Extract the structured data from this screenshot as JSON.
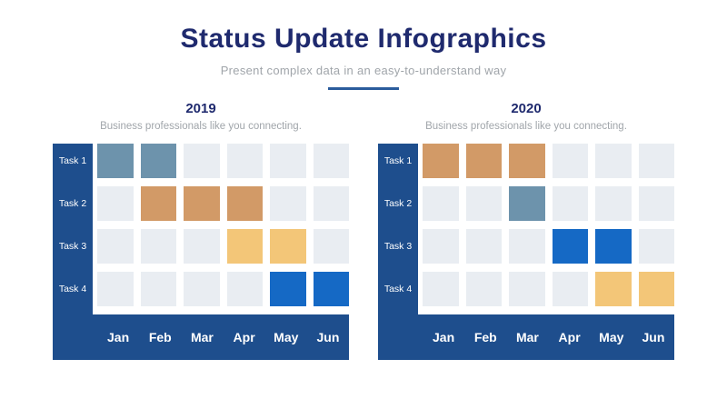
{
  "header": {
    "title": "Status Update Infographics",
    "subtitle": "Present complex data in an easy-to-understand way"
  },
  "colors": {
    "navy": "#1e4e8d",
    "title_navy": "#1f2a6e",
    "muted_text": "#a0a5aa",
    "divider_blue": "#2b5c9c",
    "cell_empty": "#e9edf2",
    "steel_blue": "#6d93ac",
    "tan": "#d29a67",
    "light_orange": "#f3c678",
    "bright_blue": "#1569c5",
    "label_white": "#ffffff"
  },
  "chart_data": [
    {
      "type": "bar",
      "subtype": "gantt-grid",
      "title": "2019",
      "caption": "Business professionals like you connecting.",
      "x": [
        "Jan",
        "Feb",
        "Mar",
        "Apr",
        "May",
        "Jun"
      ],
      "categories": [
        "Task 1",
        "Task 2",
        "Task 3",
        "Task 4"
      ],
      "series": [
        {
          "name": "Task 1",
          "months": [
            "Jan",
            "Feb"
          ],
          "color_key": "steel_blue"
        },
        {
          "name": "Task 2",
          "months": [
            "Feb",
            "Mar",
            "Apr"
          ],
          "color_key": "tan"
        },
        {
          "name": "Task 3",
          "months": [
            "Apr",
            "May"
          ],
          "color_key": "light_orange"
        },
        {
          "name": "Task 4",
          "months": [
            "May",
            "Jun"
          ],
          "color_key": "bright_blue"
        }
      ],
      "legend": false,
      "grid": "filled-cell-matrix"
    },
    {
      "type": "bar",
      "subtype": "gantt-grid",
      "title": "2020",
      "caption": "Business professionals like you connecting.",
      "x": [
        "Jan",
        "Feb",
        "Mar",
        "Apr",
        "May",
        "Jun"
      ],
      "categories": [
        "Task 1",
        "Task 2",
        "Task 3",
        "Task 4"
      ],
      "series": [
        {
          "name": "Task 1",
          "months": [
            "Jan",
            "Feb",
            "Mar"
          ],
          "color_key": "tan"
        },
        {
          "name": "Task 2",
          "months": [
            "Mar"
          ],
          "color_key": "steel_blue"
        },
        {
          "name": "Task 3",
          "months": [
            "Apr",
            "May"
          ],
          "color_key": "bright_blue"
        },
        {
          "name": "Task 4",
          "months": [
            "May",
            "Jun"
          ],
          "color_key": "light_orange"
        }
      ],
      "legend": false,
      "grid": "filled-cell-matrix"
    }
  ]
}
